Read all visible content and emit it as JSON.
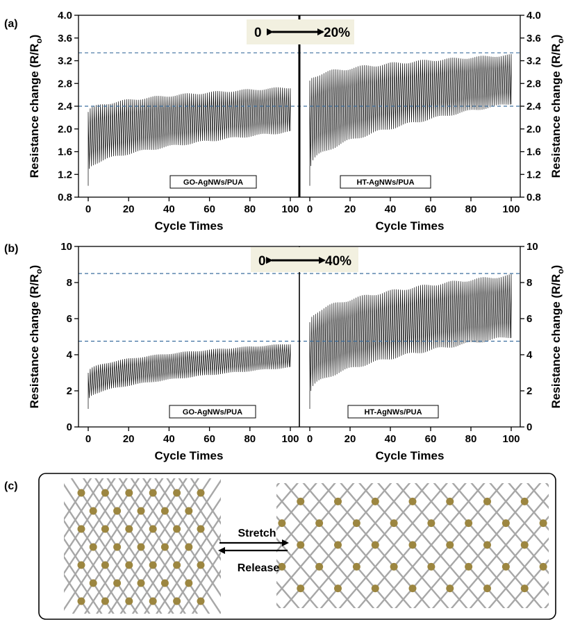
{
  "chart_data": [
    {
      "type": "line",
      "panel_label": "(a)",
      "banner_left": "0",
      "banner_right": "20%",
      "ylabel_left": "Resistance change (R/R",
      "ylabel_right": "Resistance change (R/R",
      "ylabel_sub": "o",
      "ylabel_close": ")",
      "ylim": [
        0.8,
        4.0
      ],
      "yticks": [
        0.8,
        1.2,
        1.6,
        2.0,
        2.4,
        2.8,
        3.2,
        3.6,
        4.0
      ],
      "ytick_labels": [
        "0.8",
        "1.2",
        "1.6",
        "2.0",
        "2.4",
        "2.8",
        "3.2",
        "3.6",
        "4.0"
      ],
      "reference_lines": [
        2.4,
        3.34
      ],
      "subplots": [
        {
          "xlabel": "Cycle Times",
          "xlim": [
            0,
            100
          ],
          "xticks": [
            0,
            20,
            40,
            60,
            80,
            100
          ],
          "xtick_labels": [
            "0",
            "20",
            "40",
            "60",
            "80",
            "100"
          ],
          "legend": "GO-AgNWs/PUA",
          "series": [
            {
              "start": 1.0,
              "min_begin": 1.3,
              "min_end": 1.95,
              "max_begin": 2.3,
              "max_end": 2.73
            }
          ]
        },
        {
          "xlabel": "Cycle Times",
          "xlim": [
            0,
            100
          ],
          "xticks": [
            0,
            20,
            40,
            60,
            80,
            100
          ],
          "xtick_labels": [
            "0",
            "20",
            "40",
            "60",
            "80",
            "100"
          ],
          "legend": "HT-AgNWs/PUA",
          "series": [
            {
              "start": 1.0,
              "min_begin": 1.35,
              "min_end": 2.45,
              "max_begin": 2.85,
              "max_end": 3.3
            }
          ]
        }
      ]
    },
    {
      "type": "line",
      "panel_label": "(b)",
      "banner_left": "0",
      "banner_right": "40%",
      "ylabel_left": "Resistance change (R/R",
      "ylabel_right": "Resistance change (R/R",
      "ylabel_sub": "o",
      "ylabel_close": ")",
      "ylim": [
        0,
        10
      ],
      "yticks": [
        0,
        2,
        4,
        6,
        8,
        10
      ],
      "ytick_labels": [
        "0",
        "2",
        "4",
        "6",
        "8",
        "10"
      ],
      "reference_lines": [
        4.75,
        8.5
      ],
      "subplots": [
        {
          "xlabel": "Cycle Times",
          "xlim": [
            0,
            100
          ],
          "xticks": [
            0,
            20,
            40,
            60,
            80,
            100
          ],
          "xtick_labels": [
            "0",
            "20",
            "40",
            "60",
            "80",
            "100"
          ],
          "legend": "GO-AgNWs/PUA",
          "series": [
            {
              "start": 1.0,
              "min_begin": 1.6,
              "min_end": 3.3,
              "max_begin": 3.0,
              "max_end": 4.6
            }
          ]
        },
        {
          "xlabel": "Cycle Times",
          "xlim": [
            0,
            100
          ],
          "xticks": [
            0,
            20,
            40,
            60,
            80,
            100
          ],
          "xtick_labels": [
            "0",
            "20",
            "40",
            "60",
            "80",
            "100"
          ],
          "legend": "HT-AgNWs/PUA",
          "series": [
            {
              "start": 1.0,
              "min_begin": 2.0,
              "min_end": 5.0,
              "max_begin": 5.8,
              "max_end": 8.4
            }
          ]
        }
      ]
    }
  ],
  "schematic": {
    "panel_label": "(c)",
    "stretch_label": "Stretch",
    "release_label": "Release"
  },
  "colors": {
    "reference_line": "#3b6e9e",
    "banner_fill": "#f2f0e0",
    "wire": "#a7a7a7",
    "junction": "#9c8640"
  }
}
